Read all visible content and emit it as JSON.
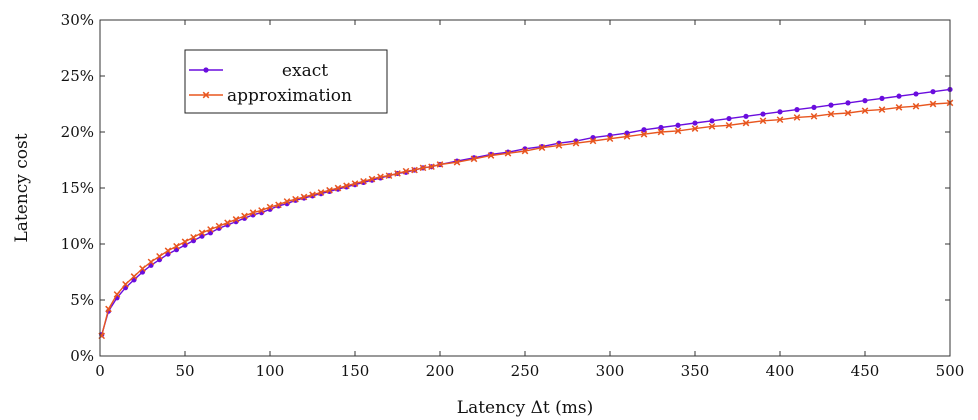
{
  "chart_data": {
    "type": "line",
    "xlabel": "Latency Δt (ms)",
    "ylabel": "Latency cost",
    "xlim": [
      0,
      500
    ],
    "ylim": [
      0,
      30
    ],
    "xticks": [
      {
        "value": 0,
        "label": "0"
      },
      {
        "value": 50,
        "label": "50"
      },
      {
        "value": 100,
        "label": "100"
      },
      {
        "value": 150,
        "label": "150"
      },
      {
        "value": 200,
        "label": "200"
      },
      {
        "value": 250,
        "label": "250"
      },
      {
        "value": 300,
        "label": "300"
      },
      {
        "value": 350,
        "label": "350"
      },
      {
        "value": 400,
        "label": "400"
      },
      {
        "value": 450,
        "label": "450"
      },
      {
        "value": 500,
        "label": "500"
      }
    ],
    "yticks": [
      {
        "value": 0,
        "label": "0%"
      },
      {
        "value": 5,
        "label": "5%"
      },
      {
        "value": 10,
        "label": "10%"
      },
      {
        "value": 15,
        "label": "15%"
      },
      {
        "value": 20,
        "label": "20%"
      },
      {
        "value": 25,
        "label": "25%"
      },
      {
        "value": 30,
        "label": "30%"
      }
    ],
    "grid": false,
    "legend": "top-left",
    "series": [
      {
        "name": "exact",
        "color": "#6a0dde",
        "marker": "circle",
        "x": [
          1,
          5,
          10,
          15,
          20,
          25,
          30,
          35,
          40,
          45,
          50,
          55,
          60,
          65,
          70,
          75,
          80,
          85,
          90,
          95,
          100,
          105,
          110,
          115,
          120,
          125,
          130,
          135,
          140,
          145,
          150,
          155,
          160,
          165,
          170,
          175,
          180,
          185,
          190,
          195,
          200,
          210,
          220,
          230,
          240,
          250,
          260,
          270,
          280,
          290,
          300,
          310,
          320,
          330,
          340,
          350,
          360,
          370,
          380,
          390,
          400,
          410,
          420,
          430,
          440,
          450,
          460,
          470,
          480,
          490,
          500
        ],
        "y": [
          1.9,
          4.0,
          5.2,
          6.1,
          6.8,
          7.5,
          8.1,
          8.6,
          9.1,
          9.5,
          9.9,
          10.3,
          10.7,
          11.0,
          11.4,
          11.7,
          12.0,
          12.3,
          12.6,
          12.8,
          13.1,
          13.4,
          13.6,
          13.9,
          14.1,
          14.3,
          14.5,
          14.7,
          14.9,
          15.1,
          15.3,
          15.5,
          15.7,
          15.9,
          16.1,
          16.3,
          16.4,
          16.6,
          16.8,
          16.9,
          17.1,
          17.4,
          17.7,
          18.0,
          18.2,
          18.5,
          18.7,
          19.0,
          19.2,
          19.5,
          19.7,
          19.9,
          20.2,
          20.4,
          20.6,
          20.8,
          21.0,
          21.2,
          21.4,
          21.6,
          21.8,
          22.0,
          22.2,
          22.4,
          22.6,
          22.8,
          23.0,
          23.2,
          23.4,
          23.6,
          23.8
        ]
      },
      {
        "name": "approximation",
        "color": "#e8561f",
        "marker": "cross",
        "x": [
          1,
          5,
          10,
          15,
          20,
          25,
          30,
          35,
          40,
          45,
          50,
          55,
          60,
          65,
          70,
          75,
          80,
          85,
          90,
          95,
          100,
          105,
          110,
          115,
          120,
          125,
          130,
          135,
          140,
          145,
          150,
          155,
          160,
          165,
          170,
          175,
          180,
          185,
          190,
          195,
          200,
          210,
          220,
          230,
          240,
          250,
          260,
          270,
          280,
          290,
          300,
          310,
          320,
          330,
          340,
          350,
          360,
          370,
          380,
          390,
          400,
          410,
          420,
          430,
          440,
          450,
          460,
          470,
          480,
          490,
          500
        ],
        "y": [
          1.8,
          4.2,
          5.5,
          6.4,
          7.1,
          7.8,
          8.4,
          8.9,
          9.4,
          9.8,
          10.2,
          10.6,
          11.0,
          11.3,
          11.6,
          11.9,
          12.2,
          12.5,
          12.8,
          13.0,
          13.3,
          13.5,
          13.8,
          14.0,
          14.2,
          14.4,
          14.6,
          14.8,
          15.0,
          15.2,
          15.4,
          15.6,
          15.8,
          16.0,
          16.1,
          16.3,
          16.5,
          16.6,
          16.8,
          16.9,
          17.1,
          17.3,
          17.6,
          17.9,
          18.1,
          18.3,
          18.6,
          18.8,
          19.0,
          19.2,
          19.4,
          19.6,
          19.8,
          20.0,
          20.1,
          20.3,
          20.5,
          20.6,
          20.8,
          21.0,
          21.1,
          21.3,
          21.4,
          21.6,
          21.7,
          21.9,
          22.0,
          22.2,
          22.3,
          22.5,
          22.6
        ]
      }
    ]
  }
}
